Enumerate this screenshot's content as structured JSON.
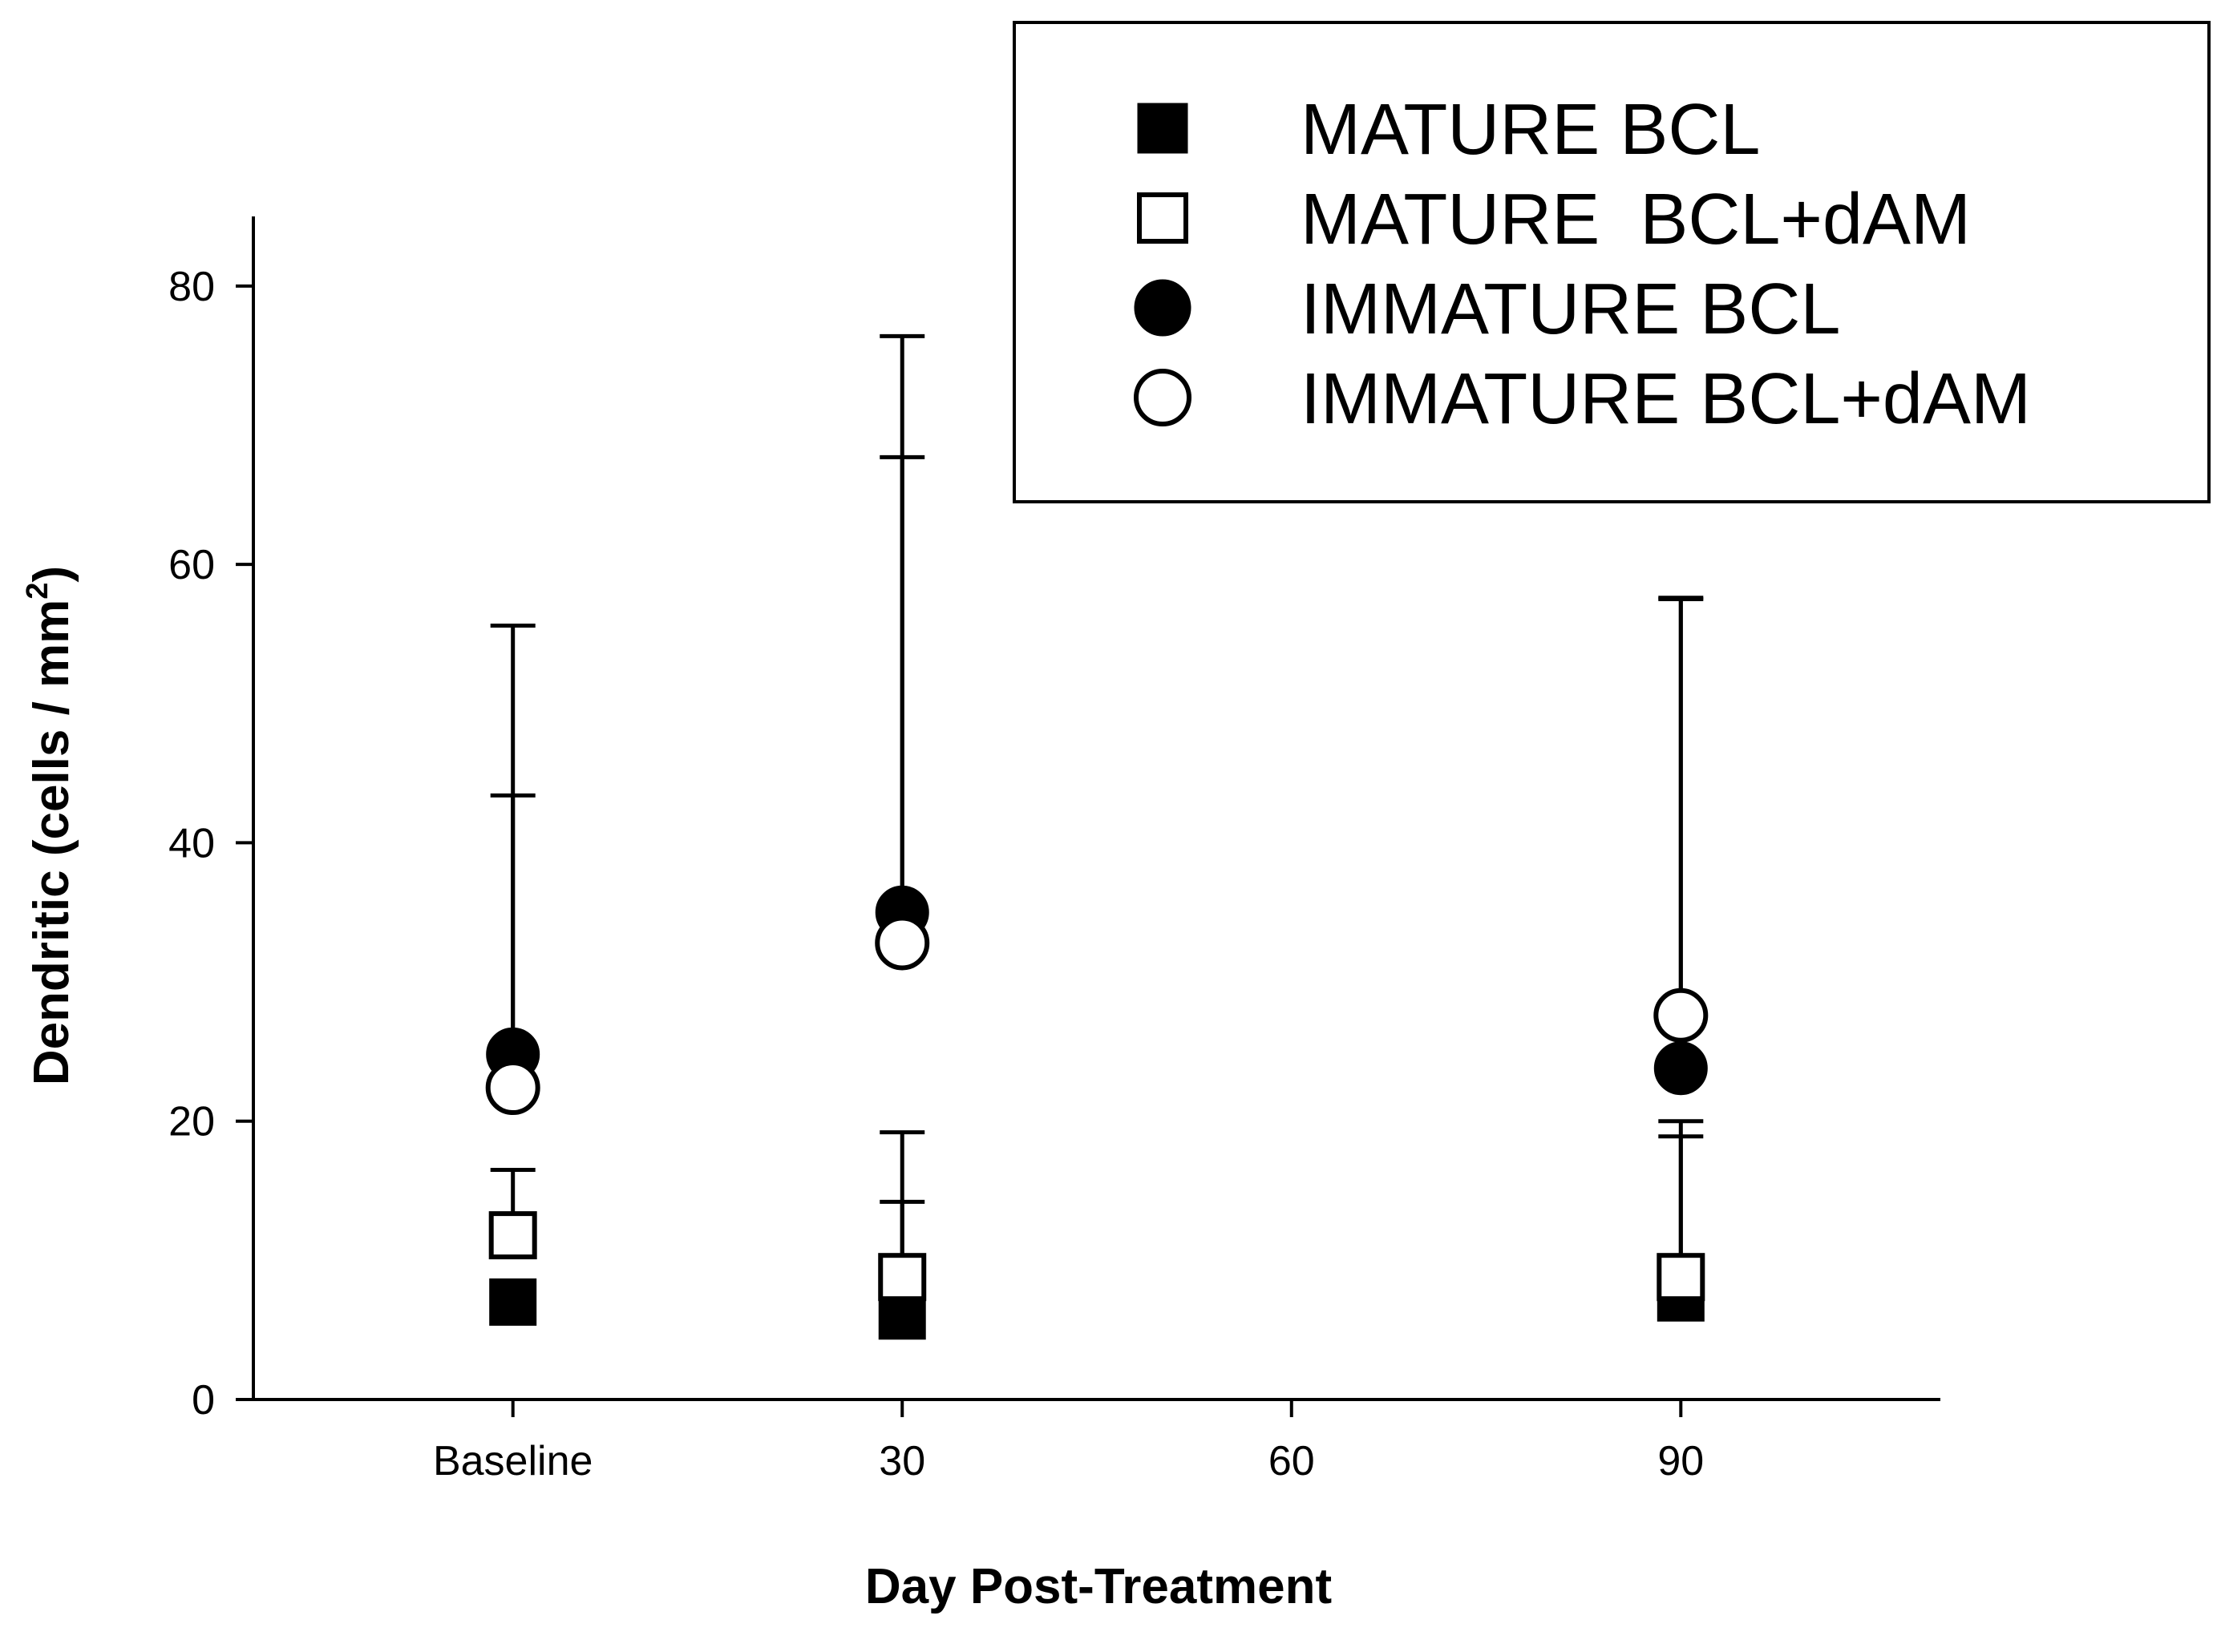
{
  "chart_data": {
    "type": "scatter",
    "title": "",
    "xlabel": "Day Post-Treatment",
    "ylabel": "Dendritic (cells / mm",
    "ylabel_superscript": "2",
    "ylabel_close": ")",
    "x_ticks": [
      {
        "value": 0,
        "label": "Baseline"
      },
      {
        "value": 30,
        "label": "30"
      },
      {
        "value": 60,
        "label": "60"
      },
      {
        "value": 90,
        "label": "90"
      }
    ],
    "xlim": [
      -20,
      110
    ],
    "y_ticks": [
      0,
      20,
      40,
      60,
      80
    ],
    "ylim": [
      0,
      85
    ],
    "grid": false,
    "legend_position": "top-right",
    "series": [
      {
        "name": "MATURE BCL",
        "marker": "square",
        "filled": true,
        "points": [
          {
            "x": 0,
            "y": 7,
            "err": null
          },
          {
            "x": 30,
            "y": 6,
            "err": 14.2
          },
          {
            "x": 90,
            "y": 7.3,
            "err": 18.9
          }
        ]
      },
      {
        "name": "MATURE  BCL+dAM",
        "marker": "square",
        "filled": false,
        "points": [
          {
            "x": 0,
            "y": 11.8,
            "err": 16.5
          },
          {
            "x": 30,
            "y": 8.8,
            "err": 19.2
          },
          {
            "x": 90,
            "y": 8.8,
            "err": 20.0
          }
        ]
      },
      {
        "name": "IMMATURE BCL",
        "marker": "circle",
        "filled": true,
        "points": [
          {
            "x": 0,
            "y": 24.8,
            "err": 43.4
          },
          {
            "x": 30,
            "y": 35.0,
            "err": 67.7
          },
          {
            "x": 90,
            "y": 23.8,
            "err": 57.6
          }
        ]
      },
      {
        "name": "IMMATURE BCL+dAM",
        "marker": "circle",
        "filled": false,
        "points": [
          {
            "x": 0,
            "y": 22.4,
            "err": 55.6
          },
          {
            "x": 30,
            "y": 32.8,
            "err": 76.4
          },
          {
            "x": 90,
            "y": 27.6,
            "err": 57.5
          }
        ]
      }
    ]
  }
}
